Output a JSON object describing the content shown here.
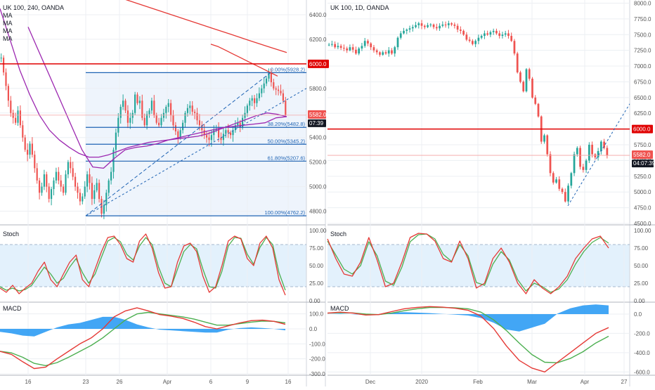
{
  "colors": {
    "candle_up": "#26a69a",
    "candle_down": "#ef5350",
    "ma_red": "#e53935",
    "ma_purple": "#9c27b0",
    "level_red": "#e00000",
    "fib_blue": "#1e63b4",
    "stoch_k": "#e53935",
    "stoch_d": "#4caf50",
    "macd_line": "#e53935",
    "signal_line": "#4caf50",
    "histogram": "#2196f3",
    "stoch_band": "#e3f1fc",
    "grid": "#eceff3"
  },
  "left_chart": {
    "title": "UK 100, 240, OANDA",
    "legend": [
      "MA",
      "MA",
      "MA",
      "MA"
    ],
    "price_ticks": [
      "6400.0",
      "6200.0",
      "6000.0",
      "5800.0",
      "5600.0",
      "5400.0",
      "5200.0",
      "5000.0",
      "4800.0"
    ],
    "level_label": "6000.0",
    "last_price_label": "5582.0",
    "countdown_label": "07:39",
    "fib_levels": [
      {
        "label": "0.00%(5928.2)",
        "price": 5928.2
      },
      {
        "label": "38.20%(5482.8)",
        "price": 5482.8
      },
      {
        "label": "50.00%(5345.2)",
        "price": 5345.2
      },
      {
        "label": "61.80%(5207.6)",
        "price": 5207.6
      },
      {
        "label": "100.00%(4762.2)",
        "price": 4762.2
      }
    ],
    "x_labels": [
      "16",
      "23",
      "26",
      "Apr",
      "6",
      "9",
      "16"
    ],
    "stoch": {
      "title": "Stoch",
      "ticks": [
        "100.00",
        "75.00",
        "50.00",
        "25.00",
        "0.00"
      ]
    },
    "macd": {
      "title": "MACD",
      "ticks": [
        "100.0",
        "0.0",
        "-100.0",
        "-200.0",
        "-300.0"
      ]
    }
  },
  "right_chart": {
    "title": "UK 100, 1D, OANDA",
    "price_ticks": [
      "8000.0",
      "7750.0",
      "7500.0",
      "7250.0",
      "7000.0",
      "6750.0",
      "6500.0",
      "6250.0",
      "6000.0",
      "5750.0",
      "5500.0",
      "5250.0",
      "5000.0",
      "4750.0",
      "4500.0"
    ],
    "level_label": "6000.0",
    "last_price_label": "5582.0",
    "countdown_label": "04:07:39",
    "x_labels": [
      "Dec",
      "2020",
      "Feb",
      "Mar",
      "Apr",
      "27"
    ],
    "stoch": {
      "title": "Stoch",
      "ticks": [
        "100.00",
        "75.00",
        "50.00",
        "25.00",
        "0.00"
      ]
    },
    "macd": {
      "title": "MACD",
      "ticks": [
        "0.0",
        "-200.0",
        "-400.0",
        "-600.0"
      ]
    }
  },
  "chart_data": [
    {
      "type": "candlestick",
      "title": "UK 100, 240, OANDA",
      "timeframe": "240",
      "x_labels": [
        "16",
        "23",
        "26",
        "Apr",
        "6",
        "9",
        "16"
      ],
      "ylim": [
        4700,
        6520
      ],
      "horizontal_level": 6000,
      "last_price": 5582,
      "closes": [
        6050,
        5930,
        5820,
        5700,
        5600,
        5560,
        5520,
        5620,
        5500,
        5400,
        5300,
        5260,
        5350,
        5260,
        5150,
        5050,
        4950,
        5000,
        5100,
        5000,
        4900,
        4980,
        5050,
        5120,
        5050,
        5000,
        4950,
        5100,
        5200,
        5150,
        5080,
        5000,
        4950,
        4880,
        4920,
        5000,
        5100,
        5030,
        4900,
        4970,
        5030,
        4900,
        4780,
        4850,
        4950,
        5050,
        5120,
        5300,
        5440,
        5560,
        5650,
        5700,
        5620,
        5520,
        5560,
        5600,
        5750,
        5680,
        5700,
        5560,
        5500,
        5590,
        5620,
        5700,
        5580,
        5520,
        5500,
        5560,
        5600,
        5650,
        5680,
        5580,
        5500,
        5450,
        5400,
        5460,
        5520,
        5600,
        5640,
        5660,
        5610,
        5600,
        5540,
        5500,
        5460,
        5420,
        5400,
        5380,
        5420,
        5460,
        5470,
        5400,
        5380,
        5430,
        5460,
        5440,
        5420,
        5460,
        5500,
        5520,
        5480,
        5560,
        5600,
        5660,
        5700,
        5720,
        5680,
        5720,
        5760,
        5800,
        5840,
        5880,
        5928,
        5850,
        5800,
        5790,
        5780,
        5760,
        5700,
        5582
      ],
      "moving_averages": [
        {
          "color": "red",
          "values": [
            6540,
            6490,
            6440,
            6390,
            6340,
            6290,
            6240,
            6190,
            6140,
            6092
          ]
        },
        {
          "color": "red",
          "values": [
            6160,
            6140,
            6110,
            6080,
            6050,
            6020,
            5990,
            5960,
            5930,
            5900
          ]
        },
        {
          "color": "purple",
          "values": [
            6450,
            6200,
            5950,
            5750,
            5580,
            5460,
            5380,
            5320,
            5270,
            5240,
            5240,
            5260,
            5290,
            5320,
            5340,
            5360,
            5370,
            5380,
            5390,
            5400,
            5410,
            5430,
            5460,
            5490,
            5520,
            5550,
            5580,
            5600,
            5590,
            5570
          ]
        },
        {
          "color": "purple",
          "values": [
            6300,
            6100,
            5900,
            5700,
            5500,
            5300,
            5160,
            5150,
            5230,
            5300,
            5320,
            5330,
            5350,
            5380,
            5400,
            5420,
            5440,
            5460,
            5480,
            5490,
            5500,
            5510,
            5520,
            5560,
            5570
          ]
        }
      ],
      "fibonacci_retracement": {
        "high": 5928.2,
        "low": 4762.2,
        "levels": {
          "0.00%": 5928.2,
          "38.20%": 5482.8,
          "50.00%": 5345.2,
          "61.80%": 5207.6,
          "100.00%": 4762.2
        }
      },
      "stochastic": {
        "ylim": [
          0,
          100
        ],
        "band": [
          20,
          80
        ],
        "k": [
          18,
          12,
          22,
          10,
          18,
          25,
          42,
          55,
          30,
          20,
          38,
          55,
          65,
          30,
          20,
          45,
          70,
          90,
          92,
          80,
          60,
          55,
          85,
          95,
          75,
          40,
          18,
          20,
          55,
          78,
          82,
          70,
          35,
          12,
          20,
          50,
          85,
          92,
          88,
          60,
          50,
          82,
          92,
          75,
          30,
          8
        ],
        "d": [
          20,
          15,
          18,
          14,
          16,
          22,
          35,
          48,
          38,
          25,
          32,
          48,
          60,
          40,
          25,
          38,
          62,
          85,
          90,
          84,
          66,
          58,
          78,
          90,
          80,
          48,
          25,
          20,
          45,
          70,
          80,
          74,
          45,
          20,
          18,
          42,
          78,
          90,
          89,
          66,
          52,
          76,
          90,
          80,
          40,
          15
        ]
      },
      "macd": {
        "ylim": [
          -300,
          150
        ],
        "macd_line": [
          -150,
          -170,
          -220,
          -265,
          -255,
          -200,
          -150,
          -100,
          -60,
          0,
          80,
          120,
          140,
          120,
          95,
          85,
          70,
          45,
          15,
          0,
          20,
          40,
          55,
          58,
          50,
          30
        ],
        "signal_line": [
          -150,
          -160,
          -190,
          -230,
          -245,
          -225,
          -190,
          -150,
          -110,
          -60,
          0,
          60,
          100,
          110,
          100,
          90,
          80,
          65,
          45,
          25,
          25,
          35,
          45,
          52,
          50,
          40
        ],
        "histogram": [
          -20,
          -30,
          -45,
          -50,
          -20,
          10,
          30,
          40,
          60,
          80,
          80,
          60,
          30,
          10,
          -5,
          -10,
          -15,
          -20,
          -25,
          -25,
          -5,
          5,
          10,
          6,
          0,
          -10
        ]
      }
    },
    {
      "type": "candlestick",
      "title": "UK 100, 1D, OANDA",
      "timeframe": "1D",
      "x_labels": [
        "Dec",
        "2020",
        "Feb",
        "Mar",
        "Apr",
        "27"
      ],
      "ylim": [
        4500,
        8050
      ],
      "horizontal_level": 6000,
      "last_price": 5582,
      "closes": [
        7340,
        7350,
        7300,
        7320,
        7290,
        7280,
        7250,
        7300,
        7260,
        7200,
        7280,
        7320,
        7400,
        7360,
        7300,
        7250,
        7220,
        7180,
        7220,
        7200,
        7250,
        7200,
        7300,
        7450,
        7520,
        7560,
        7580,
        7600,
        7620,
        7650,
        7680,
        7640,
        7620,
        7650,
        7660,
        7620,
        7600,
        7640,
        7660,
        7650,
        7680,
        7660,
        7640,
        7580,
        7560,
        7500,
        7420,
        7400,
        7350,
        7400,
        7450,
        7480,
        7520,
        7500,
        7540,
        7560,
        7520,
        7480,
        7500,
        7520,
        7480,
        7400,
        7200,
        6900,
        6750,
        6600,
        6950,
        6800,
        6500,
        6400,
        6200,
        5800,
        5900,
        5600,
        5300,
        5150,
        5200,
        5050,
        5000,
        4850,
        5100,
        5300,
        5600,
        5700,
        5400,
        5350,
        5500,
        5750,
        5600,
        5550,
        5650,
        5800,
        5700,
        5582
      ],
      "horizontal_levels": [
        6000,
        5582
      ],
      "stochastic": {
        "ylim": [
          0,
          100
        ],
        "band": [
          20,
          80
        ],
        "k": [
          88,
          60,
          38,
          35,
          55,
          90,
          58,
          20,
          25,
          55,
          90,
          96,
          95,
          85,
          60,
          55,
          85,
          60,
          18,
          25,
          60,
          75,
          55,
          25,
          10,
          30,
          18,
          10,
          20,
          35,
          60,
          75,
          88,
          92,
          75
        ],
        "d": [
          85,
          65,
          45,
          38,
          50,
          84,
          64,
          28,
          22,
          48,
          84,
          94,
          95,
          88,
          66,
          56,
          80,
          64,
          26,
          22,
          52,
          70,
          58,
          30,
          14,
          25,
          20,
          12,
          17,
          30,
          52,
          70,
          83,
          90,
          82
        ]
      },
      "macd": {
        "ylim": [
          -620,
          80
        ],
        "macd_line": [
          10,
          20,
          10,
          -10,
          -5,
          25,
          55,
          70,
          78,
          72,
          60,
          40,
          -20,
          -150,
          -330,
          -480,
          -560,
          -600,
          -500,
          -400,
          -300,
          -200,
          -140
        ],
        "signal_line": [
          10,
          15,
          12,
          0,
          -5,
          10,
          35,
          55,
          68,
          70,
          65,
          55,
          20,
          -60,
          -170,
          -300,
          -420,
          -500,
          -505,
          -460,
          -390,
          -300,
          -230
        ],
        "histogram": [
          0,
          5,
          -2,
          -10,
          0,
          15,
          20,
          15,
          10,
          2,
          -5,
          -15,
          -40,
          -90,
          -160,
          -180,
          -140,
          -100,
          5,
          60,
          90,
          100,
          90
        ]
      }
    }
  ]
}
